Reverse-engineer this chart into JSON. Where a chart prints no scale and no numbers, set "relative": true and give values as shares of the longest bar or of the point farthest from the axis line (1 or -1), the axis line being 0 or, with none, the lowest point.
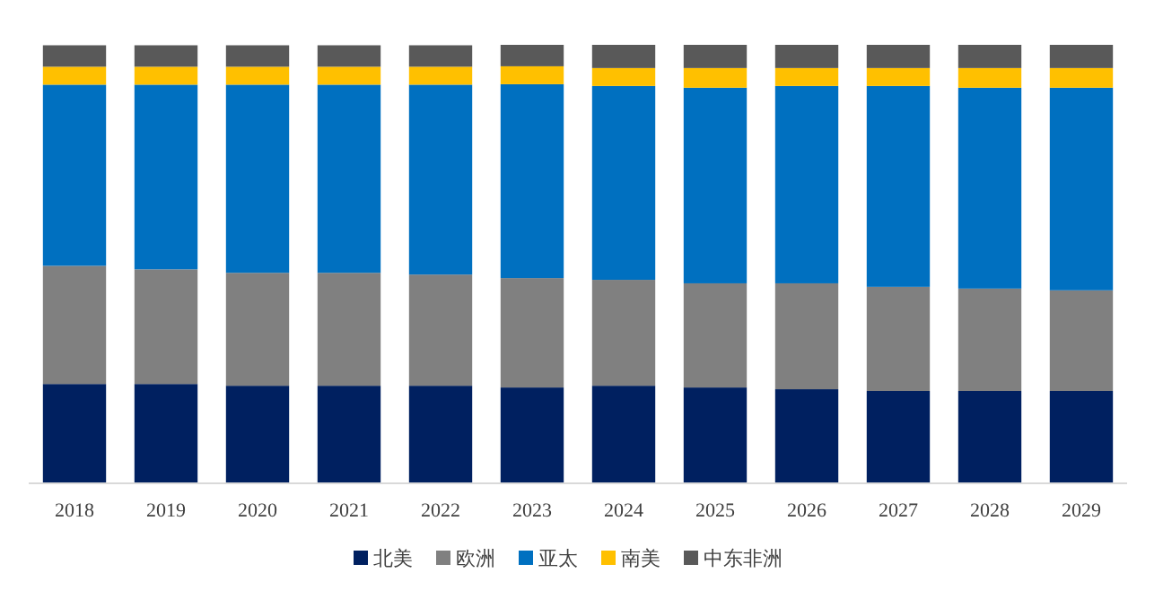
{
  "chart_data": {
    "type": "bar",
    "stacked": true,
    "relative": true,
    "legend": "bottom",
    "categories": [
      "2018",
      "2019",
      "2020",
      "2021",
      "2022",
      "2023",
      "2024",
      "2025",
      "2026",
      "2027",
      "2028",
      "2029"
    ],
    "series": [
      {
        "name": "北美",
        "color": "#002060",
        "values": [
          0.225,
          0.225,
          0.221,
          0.221,
          0.221,
          0.217,
          0.221,
          0.217,
          0.213,
          0.209,
          0.209,
          0.209
        ]
      },
      {
        "name": "欧洲",
        "color": "#808080",
        "values": [
          0.27,
          0.262,
          0.258,
          0.258,
          0.254,
          0.25,
          0.242,
          0.238,
          0.242,
          0.238,
          0.234,
          0.23
        ]
      },
      {
        "name": "亚太",
        "color": "#0070c0",
        "values": [
          0.414,
          0.422,
          0.43,
          0.43,
          0.434,
          0.443,
          0.443,
          0.447,
          0.451,
          0.459,
          0.459,
          0.463
        ]
      },
      {
        "name": "南美",
        "color": "#ffc000",
        "values": [
          0.041,
          0.041,
          0.041,
          0.041,
          0.041,
          0.041,
          0.041,
          0.045,
          0.041,
          0.041,
          0.045,
          0.045
        ]
      },
      {
        "name": "中东非洲",
        "color": "#595959",
        "values": [
          0.049,
          0.049,
          0.049,
          0.049,
          0.049,
          0.049,
          0.053,
          0.053,
          0.053,
          0.053,
          0.053,
          0.053
        ]
      }
    ]
  }
}
